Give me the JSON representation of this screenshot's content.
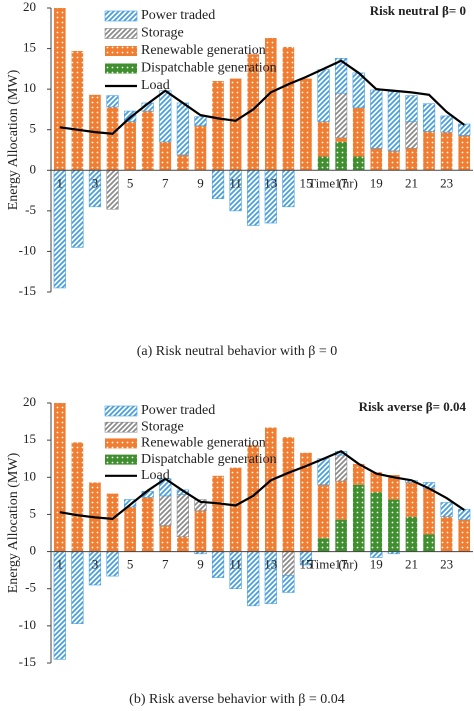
{
  "chart_data": [
    {
      "type": "bar",
      "annotation": "Risk neutral β= 0",
      "caption": "(a)  Risk neutral behavior with β = 0",
      "y_label": "Energy Allocation (MW)",
      "x_label": "Time (hr)",
      "categories": [
        "1",
        null,
        "3",
        null,
        "5",
        null,
        "7",
        null,
        "9",
        null,
        "11",
        null,
        "13",
        null,
        "15",
        null,
        "17",
        null,
        "19",
        null,
        "21",
        null,
        "23",
        null
      ],
      "ylim": [
        -15,
        20
      ],
      "yticks": [
        -15,
        -10,
        -5,
        0,
        5,
        10,
        15,
        20
      ],
      "series": [
        {
          "name": "Power traded",
          "color": "#4a9fdc",
          "values": [
            -14.5,
            -9.5,
            -4.5,
            1.4,
            1.3,
            1.0,
            6.3,
            6.4,
            1.1,
            -3.5,
            -5,
            -6.8,
            -6.5,
            -4.5,
            0,
            6.4,
            4.3,
            4.3,
            7.2,
            7.3,
            3.2,
            3.4,
            2,
            1.4
          ]
        },
        {
          "name": "Storage",
          "color": "#8c8c8c",
          "values": [
            0,
            0,
            0,
            -4.8,
            0,
            0,
            0,
            0,
            0,
            0,
            0,
            0,
            0,
            0,
            0,
            0,
            5.5,
            0,
            0,
            0,
            3.3,
            0,
            0,
            0
          ]
        },
        {
          "name": "Renewable generation",
          "color": "#ef7d32",
          "values": [
            20,
            14.7,
            9.3,
            7.8,
            6,
            7.3,
            3.5,
            1.9,
            5.5,
            11,
            11.3,
            14.3,
            16.3,
            15.2,
            11.3,
            4.3,
            0.5,
            6,
            2.7,
            2.4,
            2.7,
            4.8,
            4.7,
            4.3
          ]
        },
        {
          "name": "Dispatchable generation",
          "color": "#3f8f2f",
          "values": [
            0,
            0,
            0,
            0,
            0,
            0,
            0,
            0,
            0,
            0,
            0,
            0,
            0,
            0,
            0,
            1.7,
            3.5,
            1.7,
            0,
            0,
            0,
            0,
            0,
            0
          ]
        },
        {
          "name": "Load",
          "color": "#000000",
          "type": "line",
          "values": [
            5.3,
            5.0,
            4.7,
            4.5,
            6.5,
            8.2,
            9.8,
            8.3,
            6.8,
            6.4,
            6.1,
            7.5,
            9.6,
            10.6,
            11.5,
            12.5,
            13.5,
            12,
            10,
            9.8,
            9.6,
            9.3,
            7.2,
            5.6
          ]
        }
      ]
    },
    {
      "type": "bar",
      "annotation": "Risk averse β= 0.04",
      "caption": "(b)  Risk averse behavior with β = 0.04",
      "y_label": "Energy Allocation (MW)",
      "x_label": "Time (hr)",
      "categories": [
        "1",
        null,
        "3",
        null,
        "5",
        null,
        "7",
        null,
        "9",
        null,
        "11",
        null,
        "13",
        null,
        "15",
        null,
        "17",
        null,
        "19",
        null,
        "21",
        null,
        "23",
        null
      ],
      "ylim": [
        -15,
        20
      ],
      "yticks": [
        -15,
        -10,
        -5,
        0,
        5,
        10,
        15,
        20
      ],
      "series": [
        {
          "name": "Power traded",
          "color": "#4a9fdc",
          "values": [
            -14.5,
            -9.7,
            -4.5,
            -3.3,
            1,
            0.8,
            2.3,
            0.6,
            -0.3,
            -3.5,
            -5,
            -7.3,
            -7,
            -2.3,
            -1.8,
            3.5,
            0.5,
            0,
            -0.8,
            -0.3,
            0.3,
            0.8,
            1.9,
            1.4
          ]
        },
        {
          "name": "Storage",
          "color": "#8c8c8c",
          "values": [
            0,
            0,
            0,
            0,
            0,
            0,
            4,
            5.7,
            1.5,
            0,
            0,
            0,
            0,
            -3.2,
            0,
            0,
            3.5,
            0,
            0,
            0,
            0,
            0,
            0,
            0
          ]
        },
        {
          "name": "Renewable generation",
          "color": "#ef7d32",
          "values": [
            20,
            14.7,
            9.3,
            7.8,
            6,
            7.3,
            3.5,
            2,
            5.5,
            10.2,
            11.3,
            14.3,
            16.7,
            15.4,
            13.3,
            7.2,
            5.2,
            2.8,
            2.7,
            3.3,
            4.6,
            6.2,
            4.7,
            4.3
          ]
        },
        {
          "name": "Dispatchable generation",
          "color": "#3f8f2f",
          "values": [
            0,
            0,
            0,
            0,
            0,
            0,
            0,
            0,
            0,
            0,
            0,
            0,
            0,
            0,
            0,
            1.8,
            4.3,
            9,
            8,
            7,
            4.7,
            2.3,
            0,
            0
          ]
        },
        {
          "name": "Load",
          "color": "#000000",
          "type": "line",
          "values": [
            5.3,
            4.9,
            4.6,
            4.4,
            6.3,
            8.2,
            9.8,
            8.2,
            6.7,
            6.5,
            6.2,
            7.5,
            9.6,
            10.6,
            11.5,
            12.5,
            13.5,
            11.8,
            10.5,
            10,
            9.6,
            8.5,
            7.2,
            5.6
          ]
        }
      ]
    }
  ]
}
